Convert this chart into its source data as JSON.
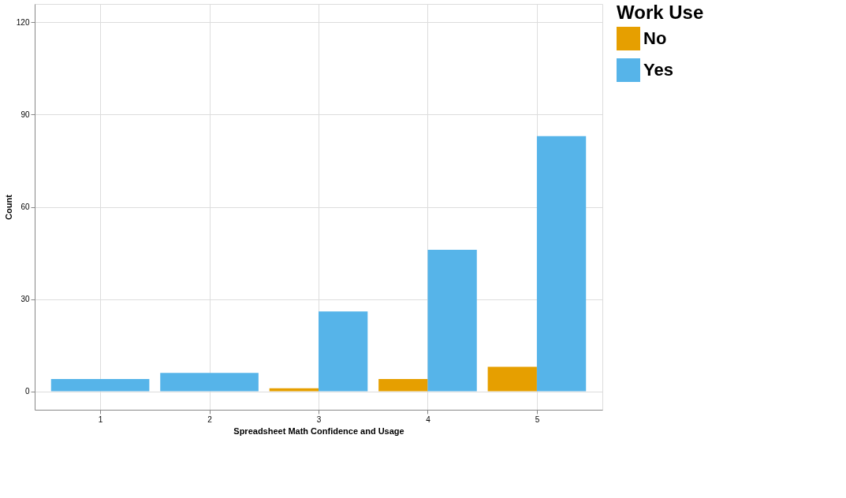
{
  "chart_data": {
    "type": "bar",
    "xlabel": "Spreadsheet Math Confidence and Usage",
    "ylabel": "Count",
    "legend_title": "Work Use",
    "categories": [
      "1",
      "2",
      "3",
      "4",
      "5"
    ],
    "series": [
      {
        "name": "No",
        "color": "#e69f00",
        "values": [
          null,
          null,
          1,
          4,
          8
        ]
      },
      {
        "name": "Yes",
        "color": "#56b4e9",
        "values": [
          4,
          6,
          26,
          46,
          83
        ]
      }
    ],
    "ylim": [
      -6,
      126
    ],
    "yticks": [
      0,
      30,
      60,
      90,
      120
    ],
    "grid": true,
    "legend": "right"
  }
}
